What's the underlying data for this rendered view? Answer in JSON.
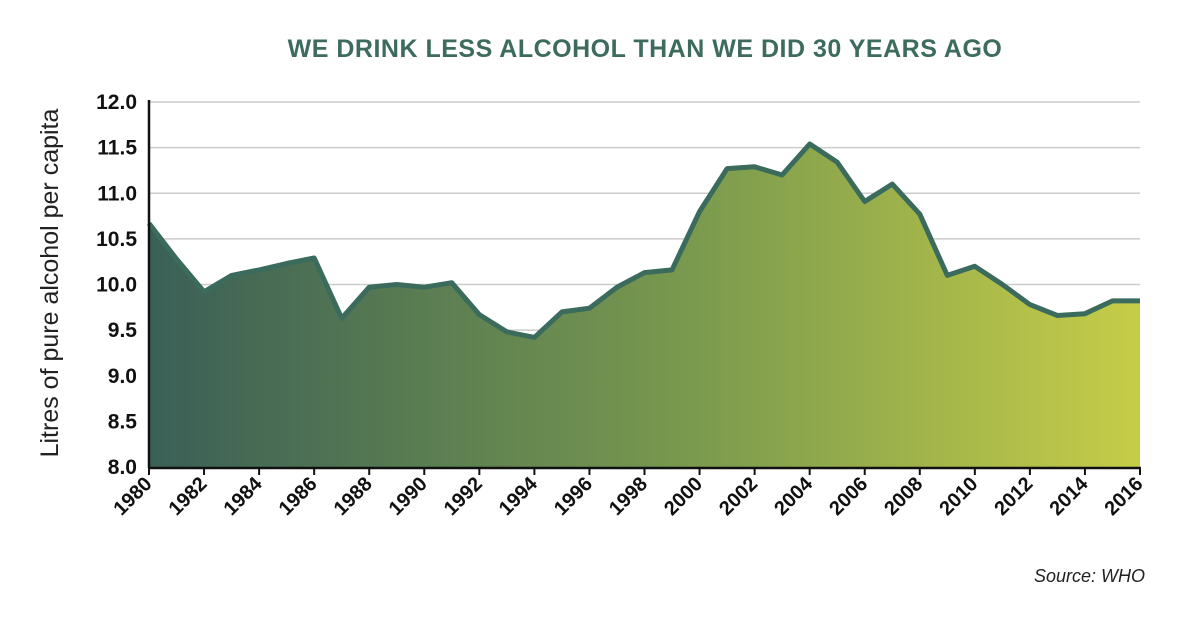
{
  "chart_data": {
    "type": "area",
    "title": "WE DRINK LESS ALCOHOL THAN WE DID 30 YEARS AGO",
    "xlabel": "",
    "ylabel": "Litres of pure alcohol per capita",
    "source": "Source: WHO",
    "ylim": [
      8.0,
      12.0
    ],
    "xlim": [
      1980,
      2016
    ],
    "y_ticks": [
      "8.0",
      "8.5",
      "9.0",
      "9.5",
      "10.0",
      "10.5",
      "11.0",
      "11.5",
      "12.0"
    ],
    "x_ticks": [
      "1980",
      "1982",
      "1984",
      "1986",
      "1988",
      "1990",
      "1992",
      "1994",
      "1996",
      "1998",
      "2000",
      "2002",
      "2004",
      "2006",
      "2008",
      "2010",
      "2012",
      "2014",
      "2016"
    ],
    "grid": true,
    "series": [
      {
        "x": [
          1980,
          1981,
          1982,
          1983,
          1984,
          1985,
          1986,
          1987,
          1988,
          1989,
          1990,
          1991,
          1992,
          1993,
          1994,
          1995,
          1996,
          1997,
          1998,
          1999,
          2000,
          2001,
          2002,
          2003,
          2004,
          2005,
          2006,
          2007,
          2008,
          2009,
          2010,
          2011,
          2012,
          2013,
          2014,
          2015,
          2016
        ],
        "values": [
          10.67,
          10.28,
          9.92,
          10.1,
          10.16,
          10.23,
          10.29,
          9.63,
          9.97,
          10.0,
          9.97,
          10.02,
          9.67,
          9.48,
          9.42,
          9.7,
          9.74,
          9.97,
          10.13,
          10.16,
          10.8,
          11.27,
          11.29,
          11.2,
          11.54,
          11.34,
          10.91,
          11.1,
          10.77,
          10.1,
          10.2,
          10.0,
          9.78,
          9.66,
          9.68,
          9.82,
          9.82
        ]
      }
    ],
    "colors": {
      "line": "#3b6b5c",
      "fill_start": "#3a5f56",
      "fill_mid": "#7a9a4e",
      "fill_end": "#c6cd48",
      "grid": "#cccccc",
      "axis": "#111111",
      "title": "#3d6b5e"
    }
  }
}
